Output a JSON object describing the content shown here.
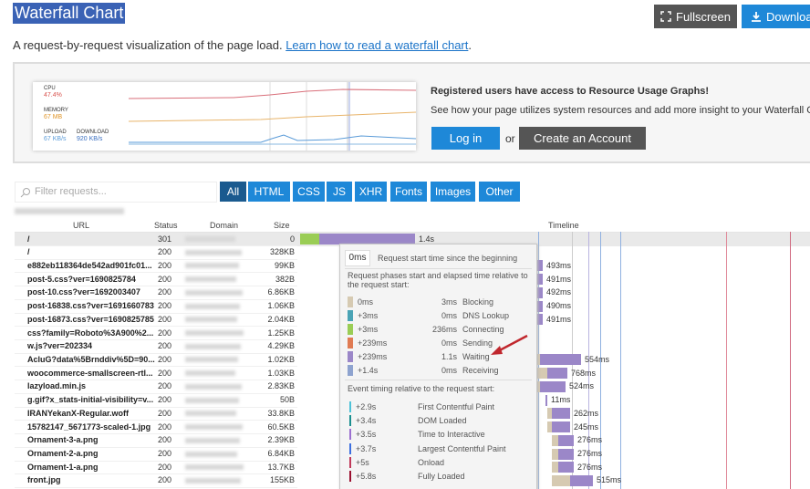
{
  "header": {
    "title": "Waterfall Chart",
    "buttons": [
      "Fullscreen",
      "Download"
    ]
  },
  "intro": {
    "text": "A request-by-request visualization of the page load.",
    "link": "Learn how to read a waterfall chart",
    "suffix": "."
  },
  "promo": {
    "graph": [
      {
        "label": "CPU",
        "value": "47.4%"
      },
      {
        "label": "MEMORY",
        "value": "67 MB"
      },
      {
        "label": "UPLOAD",
        "value": "67 KB/s"
      },
      {
        "label": "DOWNLOAD",
        "value": "920 KB/s"
      }
    ],
    "heading": "Registered users have access to Resource Usage Graphs!",
    "text": "See how your page utilizes system resources and add more insight to your Waterfall Chart.",
    "login": "Log in",
    "or": "or",
    "create": "Create an Account"
  },
  "filter": {
    "placeholder": "Filter requests..."
  },
  "tabs": [
    "All",
    "HTML",
    "CSS",
    "JS",
    "XHR",
    "Fonts",
    "Images",
    "Other"
  ],
  "active_tab": "All",
  "table": {
    "columns": [
      "URL",
      "Status",
      "Domain",
      "Size",
      "Timeline"
    ],
    "rows": [
      {
        "url": "/",
        "status": 301,
        "size": "0",
        "time": "1.4s"
      },
      {
        "url": "/",
        "status": 200,
        "size": "328KB"
      },
      {
        "url": "e882eb118364de542ad901fc01...",
        "status": 200,
        "size": "99KB",
        "time": "493ms"
      },
      {
        "url": "post-5.css?ver=1690825784",
        "status": 200,
        "size": "382B",
        "time": "491ms"
      },
      {
        "url": "post-10.css?ver=1692003407",
        "status": 200,
        "size": "6.86KB",
        "time": "492ms"
      },
      {
        "url": "post-16838.css?ver=1691660783",
        "status": 200,
        "size": "1.06KB",
        "time": "490ms"
      },
      {
        "url": "post-16873.css?ver=1690825785",
        "status": 200,
        "size": "2.04KB",
        "time": "491ms"
      },
      {
        "url": "css?family=Roboto%3A900%2...",
        "status": 200,
        "size": "1.25KB"
      },
      {
        "url": "w.js?ver=202334",
        "status": 200,
        "size": "4.29KB"
      },
      {
        "url": "AcluG?data%5Brnddiv%5D=90...",
        "status": 200,
        "size": "1.02KB",
        "time": "554ms"
      },
      {
        "url": "woocommerce-smallscreen-rtl...",
        "status": 200,
        "size": "1.03KB",
        "time": "768ms"
      },
      {
        "url": "lazyload.min.js",
        "status": 200,
        "size": "2.83KB",
        "time": "524ms"
      },
      {
        "url": "g.gif?x_stats-initial-visibility=v...",
        "status": 200,
        "size": "50B",
        "time": "11ms"
      },
      {
        "url": "IRANYekanX-Regular.woff",
        "status": 200,
        "size": "33.8KB",
        "time": "262ms"
      },
      {
        "url": "15782147_5671773-scaled-1.jpg",
        "status": 200,
        "size": "60.5KB",
        "time": "245ms"
      },
      {
        "url": "Ornament-3-a.png",
        "status": 200,
        "size": "2.39KB",
        "time": "276ms"
      },
      {
        "url": "Ornament-2-a.png",
        "status": 200,
        "size": "6.84KB",
        "time": "276ms"
      },
      {
        "url": "Ornament-1-a.png",
        "status": 200,
        "size": "13.7KB",
        "time": "276ms"
      },
      {
        "url": "front.jpg",
        "status": 200,
        "size": "155KB",
        "time": "515ms"
      }
    ]
  },
  "tooltip": {
    "start": "0ms",
    "start_note": "Request start time since the beginning",
    "phases_note": "Request phases start and elapsed time relative to the request start:",
    "phases": [
      {
        "start": "0ms",
        "duration": "3ms",
        "name": "Blocking",
        "color": "#d6cab2"
      },
      {
        "start": "+3ms",
        "duration": "0ms",
        "name": "DNS Lookup",
        "color": "#4aa3b5"
      },
      {
        "start": "+3ms",
        "duration": "236ms",
        "name": "Connecting",
        "color": "#9acd55"
      },
      {
        "start": "+239ms",
        "duration": "0ms",
        "name": "Sending",
        "color": "#e07b53"
      },
      {
        "start": "+239ms",
        "duration": "1.1s",
        "name": "Waiting",
        "color": "#9b87c8"
      },
      {
        "start": "+1.4s",
        "duration": "0ms",
        "name": "Receiving",
        "color": "#8ea3cf"
      }
    ],
    "events_note": "Event timing relative to the request start:",
    "events": [
      {
        "time": "+2.9s",
        "name": "First Contentful Paint",
        "color": "#4ec2d8"
      },
      {
        "time": "+3.4s",
        "name": "DOM Loaded",
        "color": "#1b8f8f"
      },
      {
        "time": "+3.5s",
        "name": "Time to Interactive",
        "color": "#9b6fd0"
      },
      {
        "time": "+3.7s",
        "name": "Largest Contentful Paint",
        "color": "#3d6fe0"
      },
      {
        "time": "+5s",
        "name": "Onload",
        "color": "#c0395a"
      },
      {
        "time": "+5.8s",
        "name": "Fully Loaded",
        "color": "#9b1030"
      }
    ]
  }
}
